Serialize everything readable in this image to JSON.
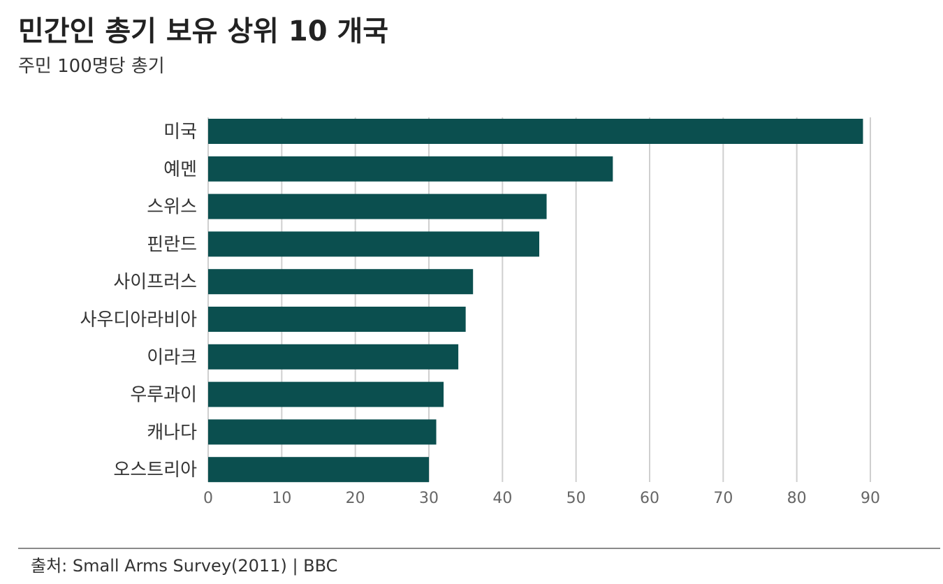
{
  "header": {
    "title": "민간인 총기 보유 상위 10 개국",
    "subtitle": "주민 100명당 총기"
  },
  "footer": {
    "source": "출처: Small Arms Survey(2011) | BBC"
  },
  "colors": {
    "bar": "#0b4f4f",
    "grid": "#cfcfcf",
    "tick_label": "#666666",
    "category_label": "#333333"
  },
  "chart_data": {
    "type": "bar",
    "orientation": "horizontal",
    "categories": [
      "미국",
      "예멘",
      "스위스",
      "핀란드",
      "사이프러스",
      "사우디아라비아",
      "이라크",
      "우루과이",
      "캐나다",
      "오스트리아"
    ],
    "values": [
      89,
      55,
      46,
      45,
      36,
      35,
      34,
      32,
      31,
      30
    ],
    "xlim": [
      0,
      90
    ],
    "xticks": [
      0,
      10,
      20,
      30,
      40,
      50,
      60,
      70,
      80,
      90
    ],
    "xlabel": "",
    "ylabel": "",
    "grid": true
  }
}
